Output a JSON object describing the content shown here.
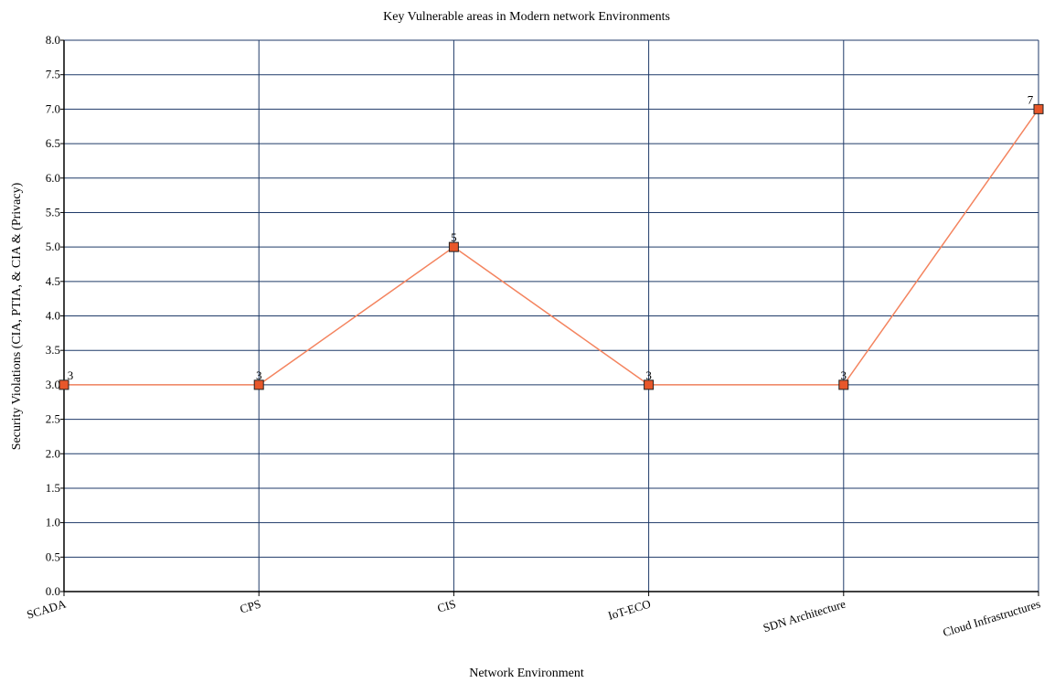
{
  "chart_data": {
    "type": "line",
    "title": "Key Vulnerable areas in Modern network Environments",
    "xlabel": "Network Environment",
    "ylabel": "Security Violations (CIA, PTIA, & CIA & (Privacy)",
    "categories": [
      "SCADA",
      "CPS",
      "CIS",
      "IoT-ECO",
      "SDN Architecture",
      "Cloud Infrastructures"
    ],
    "series": [
      {
        "values": [
          3,
          3,
          5,
          3,
          3,
          7
        ]
      }
    ],
    "data_labels": [
      "3",
      "3",
      "5",
      "3",
      "3",
      "7"
    ],
    "ylim": [
      0,
      8
    ],
    "yticks": [
      "0.0",
      "0.5",
      "1.0",
      "1.5",
      "2.0",
      "2.5",
      "3.0",
      "3.5",
      "4.0",
      "4.5",
      "5.0",
      "5.5",
      "6.0",
      "6.5",
      "7.0",
      "7.5",
      "8.0"
    ],
    "grid": true,
    "legend": "none",
    "colors": {
      "line": "#f4845f",
      "marker_fill": "#e8572a",
      "marker_stroke": "#222222",
      "grid": "#1f3a68",
      "axis": "#000000"
    }
  }
}
